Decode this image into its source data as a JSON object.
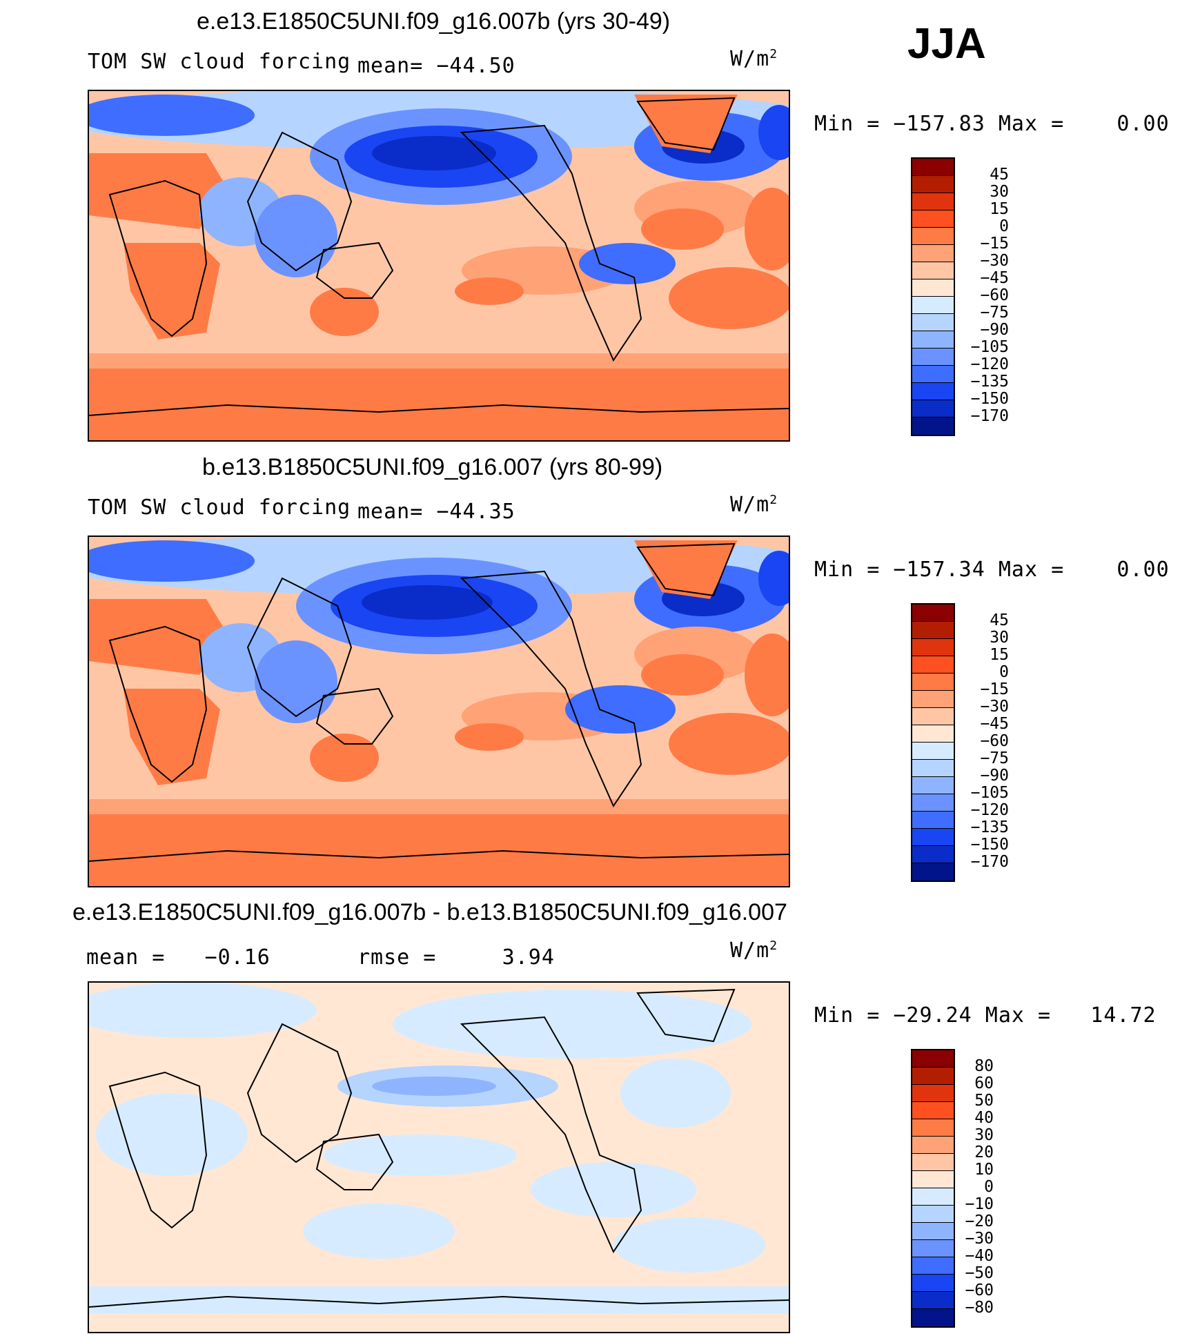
{
  "season": "JJA",
  "panels": [
    {
      "title": "e.e13.E1850C5UNI.f09_g16.007b (yrs 30-49)",
      "variable": "TOM SW cloud forcing",
      "mean_label": "mean= −44.50",
      "unit": "W/m",
      "unit_exp": "2",
      "minmax": "Min = −157.83 Max =    0.00",
      "colorbar_labels": [
        "45",
        "30",
        "15",
        "0",
        "−15",
        "−30",
        "−45",
        "−60",
        "−75",
        "−90",
        "−105",
        "−120",
        "−135",
        "−150",
        "−170"
      ],
      "colors": [
        "#8b0000",
        "#b31e00",
        "#e0340e",
        "#ff5120",
        "#ff7b46",
        "#ffa276",
        "#ffc6a6",
        "#ffe7d4",
        "#d6ebff",
        "#b5d4ff",
        "#8fb4ff",
        "#6b93ff",
        "#3f6dff",
        "#1a45f2",
        "#0a2cc8",
        "#02148a"
      ]
    },
    {
      "title": "b.e13.B1850C5UNI.f09_g16.007 (yrs 80-99)",
      "variable": "TOM SW cloud forcing",
      "mean_label": "mean= −44.35",
      "unit": "W/m",
      "unit_exp": "2",
      "minmax": "Min = −157.34 Max =    0.00",
      "colorbar_labels": [
        "45",
        "30",
        "15",
        "0",
        "−15",
        "−30",
        "−45",
        "−60",
        "−75",
        "−90",
        "−105",
        "−120",
        "−135",
        "−150",
        "−170"
      ],
      "colors": [
        "#8b0000",
        "#b31e00",
        "#e0340e",
        "#ff5120",
        "#ff7b46",
        "#ffa276",
        "#ffc6a6",
        "#ffe7d4",
        "#d6ebff",
        "#b5d4ff",
        "#8fb4ff",
        "#6b93ff",
        "#3f6dff",
        "#1a45f2",
        "#0a2cc8",
        "#02148a"
      ]
    },
    {
      "title": "e.e13.E1850C5UNI.f09_g16.007b - b.e13.B1850C5UNI.f09_g16.007",
      "variable": "",
      "mean_label": "mean =   −0.16",
      "rmse_label": "rmse =     3.94",
      "unit": "W/m",
      "unit_exp": "2",
      "minmax": "Min = −29.24 Max =   14.72",
      "colorbar_labels": [
        "80",
        "60",
        "50",
        "40",
        "30",
        "20",
        "10",
        "0",
        "−10",
        "−20",
        "−30",
        "−40",
        "−50",
        "−60",
        "−80"
      ],
      "colors": [
        "#8b0000",
        "#b31e00",
        "#e0340e",
        "#ff5120",
        "#ff7b46",
        "#ffa276",
        "#ffc6a6",
        "#ffe7d4",
        "#d6ebff",
        "#b5d4ff",
        "#8fb4ff",
        "#6b93ff",
        "#3f6dff",
        "#1a45f2",
        "#0a2cc8",
        "#02148a"
      ]
    }
  ]
}
